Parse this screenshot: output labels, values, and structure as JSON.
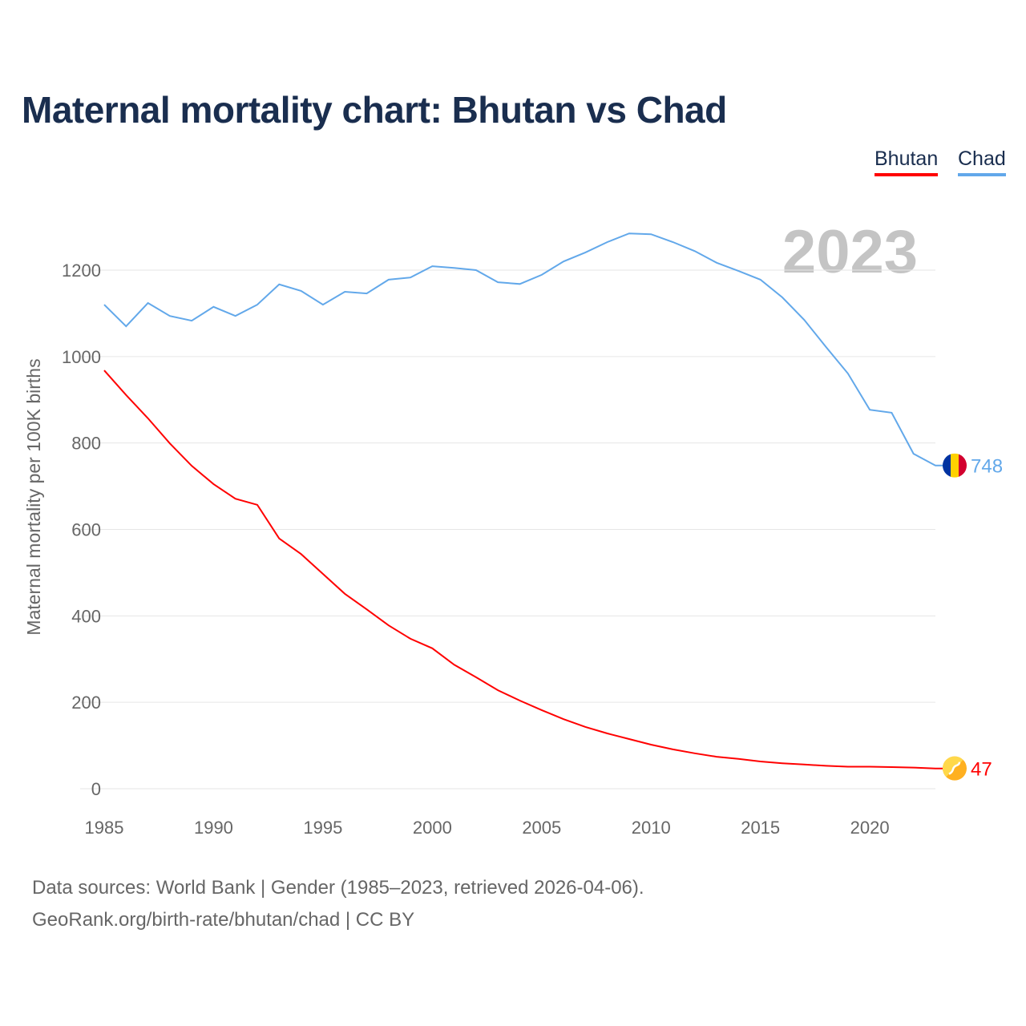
{
  "chart_data": {
    "type": "line",
    "title": "Maternal mortality chart: Bhutan vs Chad",
    "xlabel": "",
    "ylabel": "Maternal mortality per 100K births",
    "ylim": [
      0,
      1300
    ],
    "xlim": [
      1985,
      2023
    ],
    "yticks": [
      0,
      200,
      400,
      600,
      800,
      1000,
      1200
    ],
    "xticks": [
      1985,
      1990,
      1995,
      2000,
      2005,
      2010,
      2015,
      2020
    ],
    "grid": true,
    "legend_position": "top-right",
    "year_label": "2023",
    "x": [
      1985,
      1986,
      1987,
      1988,
      1989,
      1990,
      1991,
      1992,
      1993,
      1994,
      1995,
      1996,
      1997,
      1998,
      1999,
      2000,
      2001,
      2002,
      2003,
      2004,
      2005,
      2006,
      2007,
      2008,
      2009,
      2010,
      2011,
      2012,
      2013,
      2014,
      2015,
      2016,
      2017,
      2018,
      2019,
      2020,
      2021,
      2022,
      2023
    ],
    "series": [
      {
        "name": "Bhutan",
        "color": "#ff0000",
        "end_label": "47",
        "values": [
          968,
          911,
          857,
          799,
          747,
          705,
          671,
          657,
          579,
          543,
          497,
          451,
          415,
          378,
          347,
          325,
          287,
          258,
          228,
          204,
          182,
          161,
          143,
          128,
          115,
          102,
          91,
          82,
          74,
          69,
          63,
          59,
          56,
          53,
          51,
          51,
          50,
          49,
          47
        ]
      },
      {
        "name": "Chad",
        "color": "#62a8ea",
        "end_label": "748",
        "values": [
          1120,
          1070,
          1124,
          1094,
          1083,
          1115,
          1094,
          1120,
          1167,
          1152,
          1120,
          1150,
          1146,
          1178,
          1183,
          1209,
          1205,
          1200,
          1172,
          1168,
          1189,
          1220,
          1241,
          1265,
          1285,
          1283,
          1265,
          1244,
          1217,
          1198,
          1178,
          1137,
          1085,
          1022,
          961,
          877,
          870,
          775,
          748
        ]
      }
    ]
  },
  "footer": {
    "line1": "Data sources: World Bank | Gender (1985–2023, retrieved 2026-04-06).",
    "line2": "GeoRank.org/birth-rate/bhutan/chad | CC BY"
  }
}
